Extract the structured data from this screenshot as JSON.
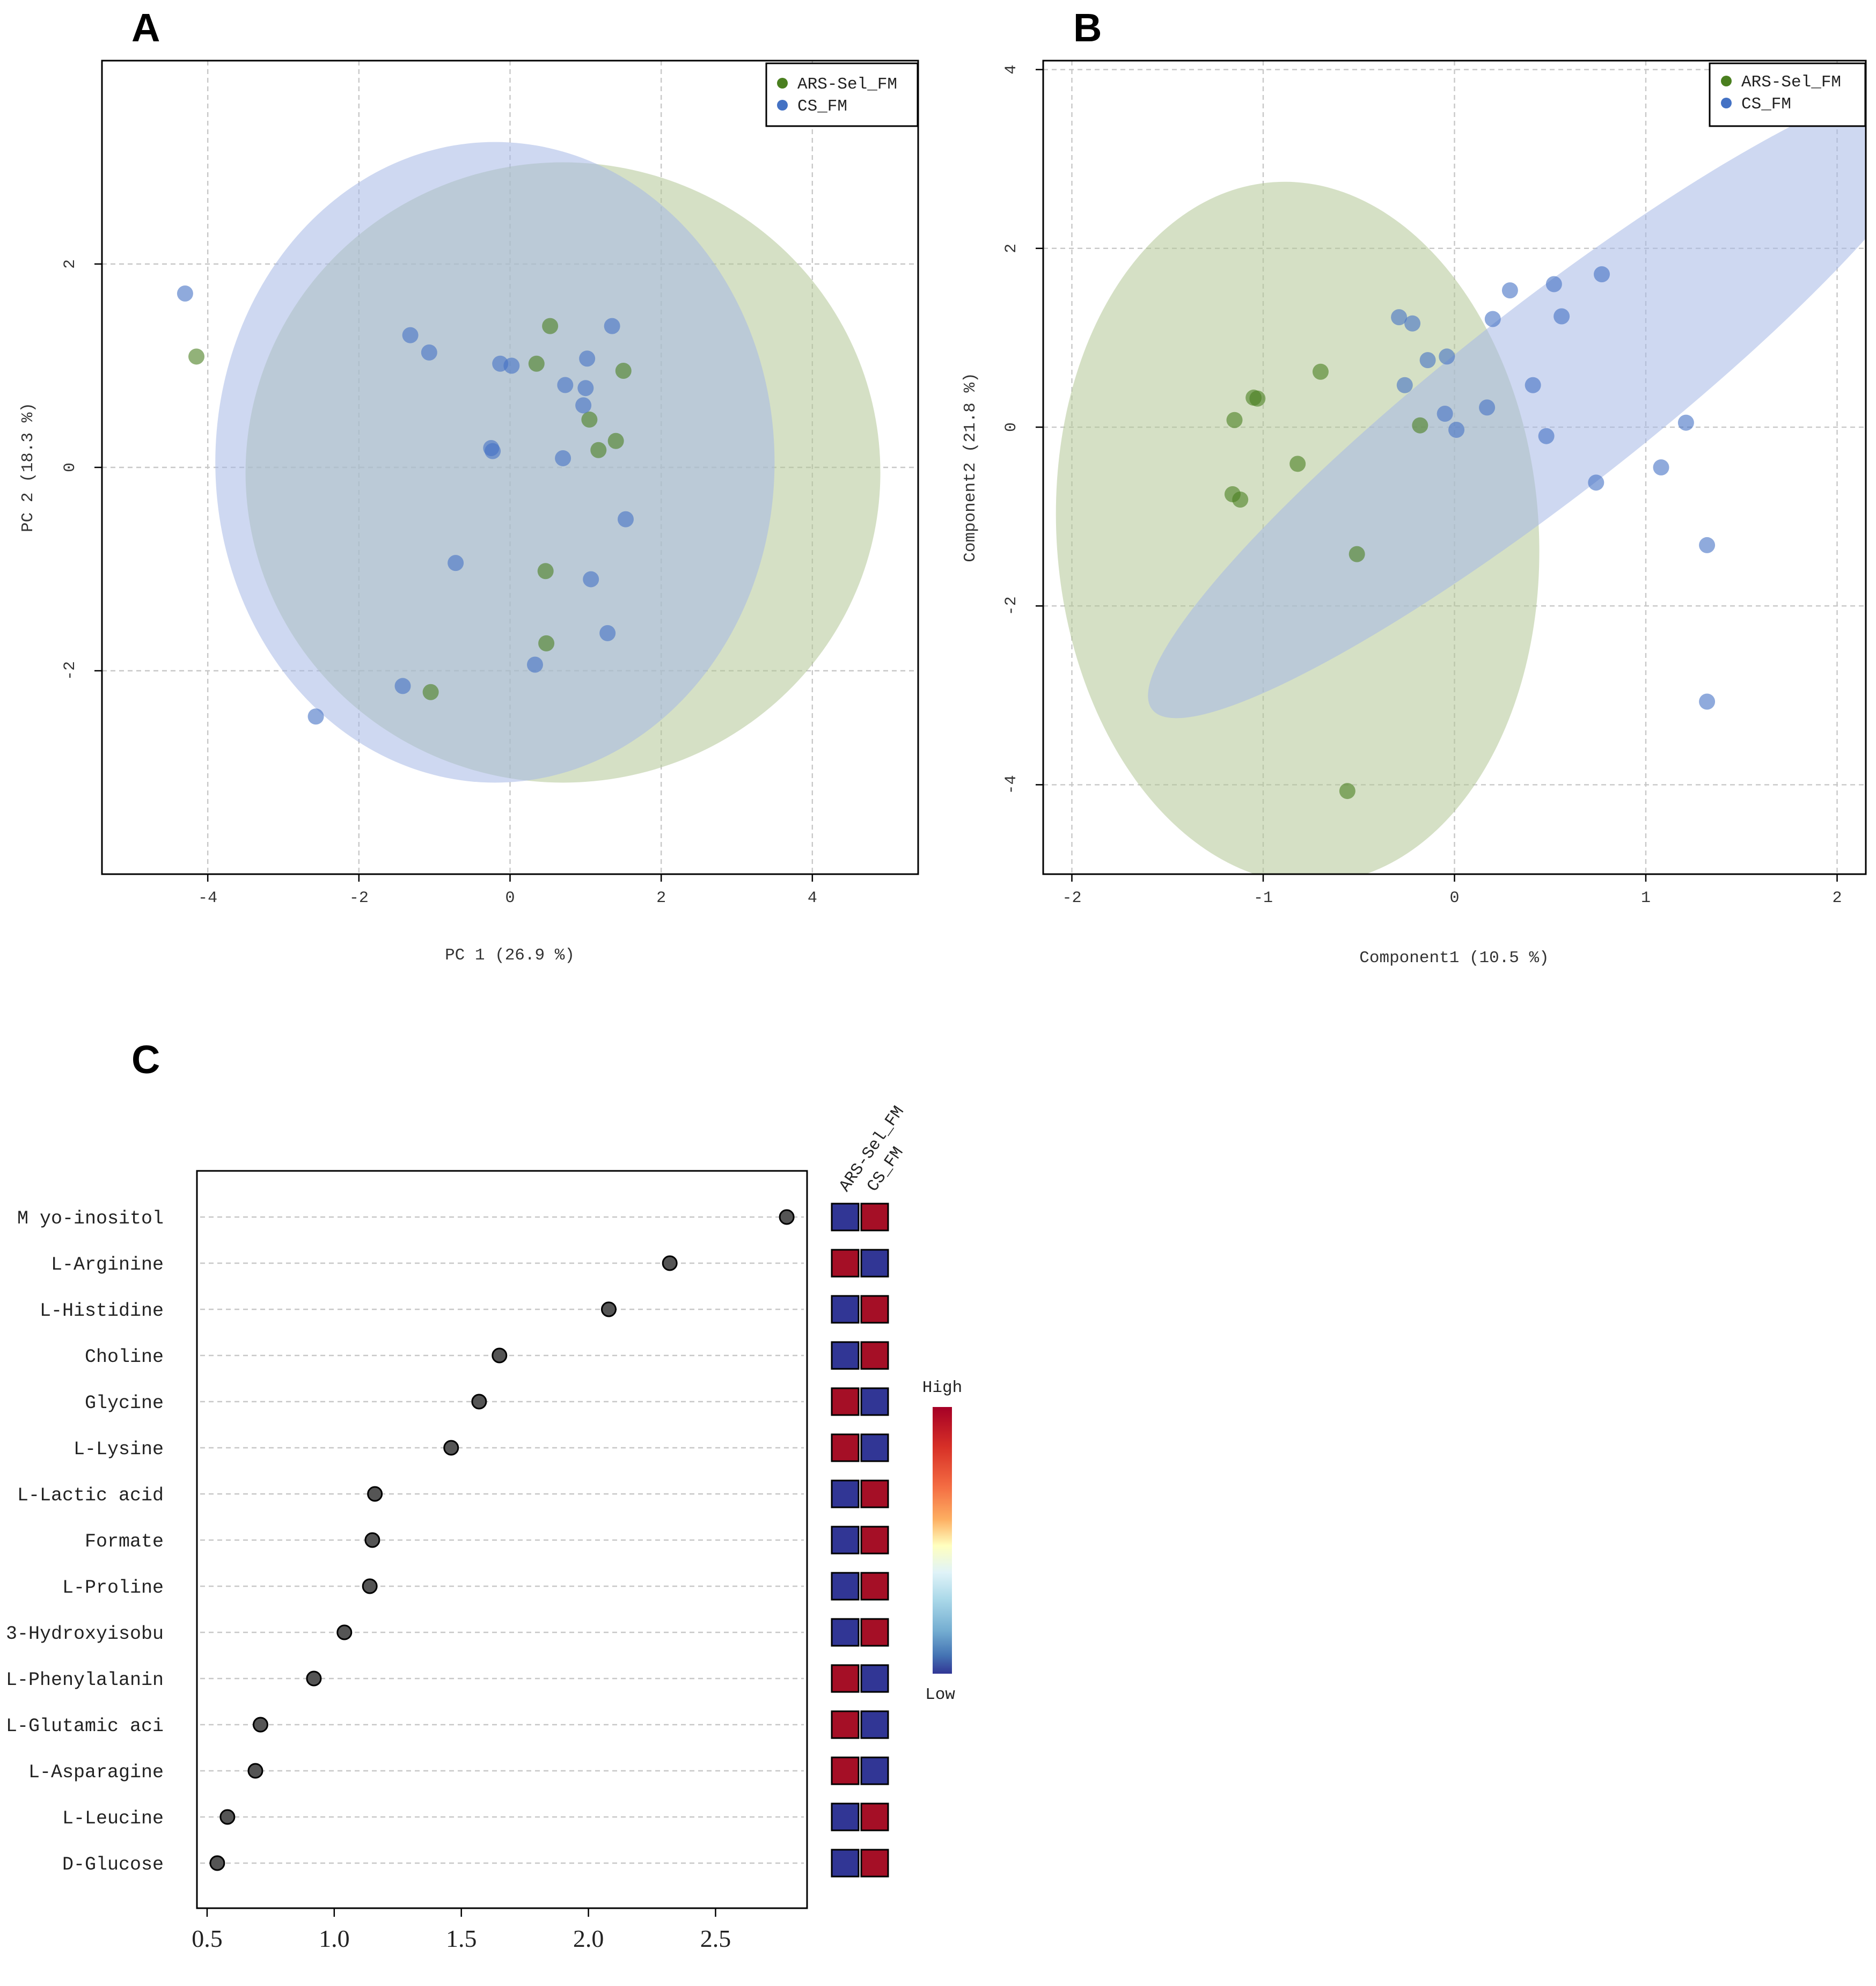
{
  "colors": {
    "ars": "#4a7f1f",
    "cs": "#4472c4",
    "ars_ellipse": "#b3c795",
    "cs_ellipse": "#a6b8e6",
    "high": "#a50f26",
    "low": "#313695",
    "dot": "#555555"
  },
  "panels": [
    {
      "letter": "A",
      "chart_data": {
        "type": "scatter",
        "title": "",
        "xlabel": "PC 1 (26.9 %)",
        "ylabel": "PC 2 (18.3 %)",
        "xlim": [
          -5.4,
          5.4
        ],
        "ylim": [
          -4.0,
          4.0
        ],
        "xticks": [
          -4,
          -2,
          0,
          2,
          4
        ],
        "yticks": [
          -2,
          0,
          2
        ],
        "grid": true,
        "legend_position": "top-right",
        "series": [
          {
            "name": "ARS-Sel_FM",
            "color_key": "ars",
            "points": [
              [
                -4.15,
                1.09
              ],
              [
                0.53,
                1.39
              ],
              [
                0.35,
                1.02
              ],
              [
                1.5,
                0.95
              ],
              [
                1.05,
                0.47
              ],
              [
                1.4,
                0.26
              ],
              [
                1.17,
                0.17
              ],
              [
                0.47,
                -1.02
              ],
              [
                0.48,
                -1.73
              ],
              [
                -1.05,
                -2.21
              ]
            ],
            "ellipse": {
              "cx": 0.7,
              "cy": -0.05,
              "rx": 4.2,
              "ry": 3.05,
              "angle": 0
            }
          },
          {
            "name": "CS_FM",
            "color_key": "cs",
            "points": [
              [
                -4.3,
                1.71
              ],
              [
                -1.32,
                1.3
              ],
              [
                -1.07,
                1.13
              ],
              [
                -0.13,
                1.02
              ],
              [
                0.02,
                1.0
              ],
              [
                1.02,
                1.07
              ],
              [
                1.35,
                1.39
              ],
              [
                0.73,
                0.81
              ],
              [
                1.0,
                0.78
              ],
              [
                0.97,
                0.61
              ],
              [
                -0.25,
                0.19
              ],
              [
                -0.23,
                0.16
              ],
              [
                0.7,
                0.09
              ],
              [
                1.53,
                -0.51
              ],
              [
                -0.72,
                -0.94
              ],
              [
                1.07,
                -1.1
              ],
              [
                1.29,
                -1.63
              ],
              [
                0.33,
                -1.94
              ],
              [
                -1.42,
                -2.15
              ],
              [
                -2.57,
                -2.45
              ]
            ],
            "ellipse": {
              "cx": -0.2,
              "cy": 0.05,
              "rx": 3.7,
              "ry": 3.15,
              "angle": 0
            }
          }
        ]
      }
    },
    {
      "letter": "B",
      "chart_data": {
        "type": "scatter",
        "title": "",
        "xlabel": "Component1 (10.5 %)",
        "ylabel": "Component2 (21.8 %)",
        "xlim": [
          -2.15,
          2.15
        ],
        "ylim": [
          -5.0,
          4.1
        ],
        "xticks": [
          -2,
          -1,
          0,
          1,
          2
        ],
        "yticks": [
          -4,
          -2,
          0,
          2,
          4
        ],
        "grid": true,
        "legend_position": "top-right",
        "series": [
          {
            "name": "ARS-Sel_FM",
            "color_key": "ars",
            "points": [
              [
                -0.7,
                0.62
              ],
              [
                -1.05,
                0.33
              ],
              [
                -1.03,
                0.32
              ],
              [
                -1.15,
                0.08
              ],
              [
                -0.82,
                -0.41
              ],
              [
                -1.16,
                -0.75
              ],
              [
                -1.12,
                -0.81
              ],
              [
                -0.18,
                0.02
              ],
              [
                -0.51,
                -1.42
              ],
              [
                -0.56,
                -4.07
              ]
            ],
            "ellipse": {
              "cx": -0.82,
              "cy": -1.18,
              "rx": 1.26,
              "ry": 3.93,
              "angle": -4
            }
          },
          {
            "name": "CS_FM",
            "color_key": "cs",
            "points": [
              [
                -0.29,
                1.23
              ],
              [
                -0.22,
                1.16
              ],
              [
                0.2,
                1.21
              ],
              [
                0.29,
                1.53
              ],
              [
                0.52,
                1.6
              ],
              [
                0.77,
                1.71
              ],
              [
                0.56,
                1.24
              ],
              [
                -0.14,
                0.75
              ],
              [
                -0.04,
                0.79
              ],
              [
                -0.26,
                0.47
              ],
              [
                0.41,
                0.47
              ],
              [
                0.17,
                0.22
              ],
              [
                -0.05,
                0.15
              ],
              [
                0.01,
                -0.03
              ],
              [
                0.48,
                -0.1
              ],
              [
                1.21,
                0.05
              ],
              [
                1.08,
                -0.45
              ],
              [
                0.74,
                -0.62
              ],
              [
                1.32,
                -1.32
              ],
              [
                1.32,
                -3.07
              ]
            ],
            "ellipse": {
              "cx": 0.5,
              "cy": 0.32,
              "rx": 2.64,
              "ry": 1.05,
              "angle": -38
            }
          }
        ]
      }
    }
  ],
  "panel_c": {
    "letter": "C",
    "chart_data": {
      "type": "dot",
      "title": "",
      "xlabel": "",
      "xlim": [
        0.46,
        2.86
      ],
      "xticks": [
        "0.5",
        "1.0",
        "1.5",
        "2.0",
        "2.5"
      ],
      "xtick_values": [
        0.5,
        1.0,
        1.5,
        2.0,
        2.5
      ],
      "groups": [
        "ARS-Sel_FM",
        "CS_FM"
      ],
      "colorbar": {
        "high_label": "High",
        "low_label": "Low"
      },
      "items": [
        {
          "label": "M yo-inositol",
          "value": 2.78,
          "levels": [
            "low",
            "high"
          ]
        },
        {
          "label": "L-Arginine",
          "value": 2.32,
          "levels": [
            "high",
            "low"
          ]
        },
        {
          "label": "L-Histidine",
          "value": 2.08,
          "levels": [
            "low",
            "high"
          ]
        },
        {
          "label": "Choline",
          "value": 1.65,
          "levels": [
            "low",
            "high"
          ]
        },
        {
          "label": "Glycine",
          "value": 1.57,
          "levels": [
            "high",
            "low"
          ]
        },
        {
          "label": "L-Lysine",
          "value": 1.46,
          "levels": [
            "high",
            "low"
          ]
        },
        {
          "label": "L-Lactic acid",
          "value": 1.16,
          "levels": [
            "low",
            "high"
          ]
        },
        {
          "label": "Formate",
          "value": 1.15,
          "levels": [
            "low",
            "high"
          ]
        },
        {
          "label": "L-Proline",
          "value": 1.14,
          "levels": [
            "low",
            "high"
          ]
        },
        {
          "label": "3-Hydroxyisobu",
          "value": 1.04,
          "levels": [
            "low",
            "high"
          ]
        },
        {
          "label": "L-Phenylalanin",
          "value": 0.92,
          "levels": [
            "high",
            "low"
          ]
        },
        {
          "label": "L-Glutamic aci",
          "value": 0.71,
          "levels": [
            "high",
            "low"
          ]
        },
        {
          "label": "L-Asparagine",
          "value": 0.69,
          "levels": [
            "high",
            "low"
          ]
        },
        {
          "label": "L-Leucine",
          "value": 0.58,
          "levels": [
            "low",
            "high"
          ]
        },
        {
          "label": "D-Glucose",
          "value": 0.54,
          "levels": [
            "low",
            "high"
          ]
        }
      ]
    }
  }
}
